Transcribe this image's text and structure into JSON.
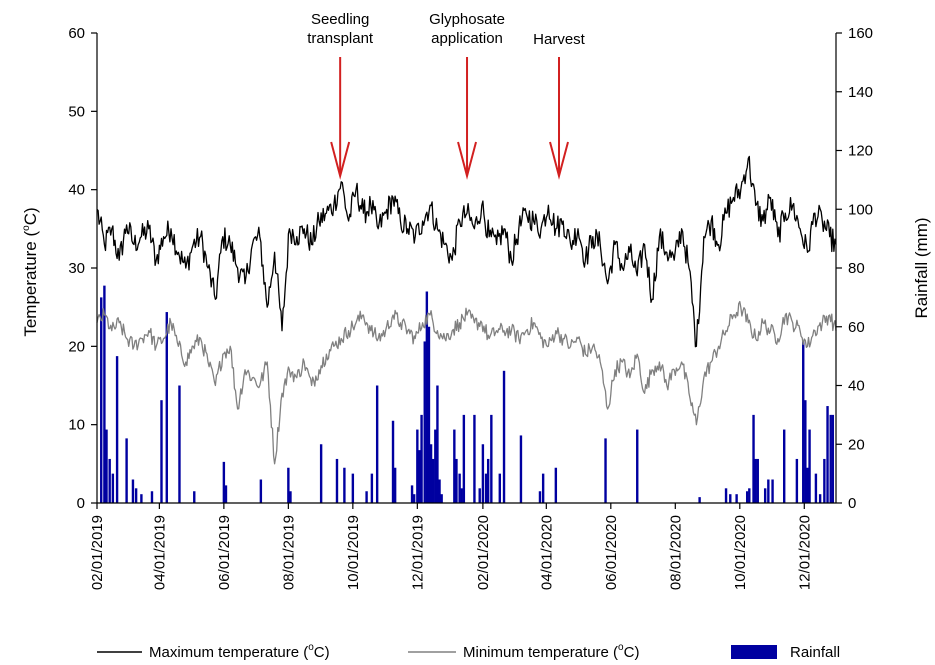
{
  "chart_data": {
    "type": "line",
    "title": "",
    "ylabel": "Temperature (°C)",
    "ylabel_parts": [
      "Temperature (",
      "o",
      "C)"
    ],
    "y2label": "Rainfall (mm)",
    "ylim": [
      0,
      60
    ],
    "y2lim": [
      0,
      160
    ],
    "yticks": [
      "0",
      "10",
      "20",
      "30",
      "40",
      "50",
      "60"
    ],
    "y2ticks": [
      "0",
      "20",
      "40",
      "60",
      "80",
      "100",
      "120",
      "140",
      "160"
    ],
    "xlim": [
      "2019-02-01",
      "2020-12-31"
    ],
    "xticks": [
      {
        "label": "02/01/2019",
        "date": "2019-02-01"
      },
      {
        "label": "04/01/2019",
        "date": "2019-04-01"
      },
      {
        "label": "06/01/2019",
        "date": "2019-06-01"
      },
      {
        "label": "08/01/2019",
        "date": "2019-08-01"
      },
      {
        "label": "10/01/2019",
        "date": "2019-10-01"
      },
      {
        "label": "12/01/2019",
        "date": "2019-12-01"
      },
      {
        "label": "02/01/2020",
        "date": "2020-02-01"
      },
      {
        "label": "04/01/2020",
        "date": "2020-04-01"
      },
      {
        "label": "06/01/2020",
        "date": "2020-06-01"
      },
      {
        "label": "08/01/2020",
        "date": "2020-08-01"
      },
      {
        "label": "10/01/2020",
        "date": "2020-10-01"
      },
      {
        "label": "12/01/2020",
        "date": "2020-12-01"
      }
    ],
    "annotations": [
      {
        "label_lines": [
          "Seedling",
          "transplant"
        ],
        "date": "2019-09-19"
      },
      {
        "label_lines": [
          "Glyphosate",
          "application"
        ],
        "date": "2020-01-17"
      },
      {
        "label_lines": [
          "Harvest"
        ],
        "date": "2020-04-13"
      }
    ],
    "legend_position": "bottom",
    "legend": [
      {
        "name": "Maximum temperature (°C)",
        "parts": [
          "Maximum temperature (",
          "o",
          "C)"
        ],
        "color": "#000000",
        "kind": "line"
      },
      {
        "name": "Minimum temperature (°C)",
        "parts": [
          "Minimum temperature (",
          "o",
          "C)"
        ],
        "color": "#808080",
        "kind": "line"
      },
      {
        "name": "Rainfall",
        "parts": [
          "Rainfall",
          "",
          ""
        ],
        "color": "#0000a0",
        "kind": "bar"
      }
    ],
    "series": [
      {
        "name": "Maximum temperature (°C)",
        "axis": "left",
        "color": "#000000",
        "x": [
          "2019-02-01",
          "2019-02-08",
          "2019-02-15",
          "2019-02-22",
          "2019-03-01",
          "2019-03-08",
          "2019-03-15",
          "2019-03-22",
          "2019-03-29",
          "2019-04-05",
          "2019-04-12",
          "2019-04-19",
          "2019-04-26",
          "2019-05-03",
          "2019-05-10",
          "2019-05-17",
          "2019-05-24",
          "2019-05-31",
          "2019-06-07",
          "2019-06-14",
          "2019-06-21",
          "2019-06-28",
          "2019-07-05",
          "2019-07-12",
          "2019-07-19",
          "2019-07-26",
          "2019-08-02",
          "2019-08-09",
          "2019-08-16",
          "2019-08-23",
          "2019-08-30",
          "2019-09-06",
          "2019-09-13",
          "2019-09-20",
          "2019-09-27",
          "2019-10-04",
          "2019-10-11",
          "2019-10-18",
          "2019-10-25",
          "2019-11-01",
          "2019-11-08",
          "2019-11-15",
          "2019-11-22",
          "2019-11-29",
          "2019-12-06",
          "2019-12-13",
          "2019-12-20",
          "2019-12-27",
          "2020-01-03",
          "2020-01-10",
          "2020-01-17",
          "2020-01-24",
          "2020-01-31",
          "2020-02-07",
          "2020-02-14",
          "2020-02-21",
          "2020-02-28",
          "2020-03-06",
          "2020-03-13",
          "2020-03-20",
          "2020-03-27",
          "2020-04-03",
          "2020-04-10",
          "2020-04-17",
          "2020-04-24",
          "2020-05-01",
          "2020-05-08",
          "2020-05-15",
          "2020-05-22",
          "2020-05-29",
          "2020-06-05",
          "2020-06-12",
          "2020-06-19",
          "2020-06-26",
          "2020-07-03",
          "2020-07-10",
          "2020-07-17",
          "2020-07-24",
          "2020-07-31",
          "2020-08-07",
          "2020-08-14",
          "2020-08-21",
          "2020-08-28",
          "2020-09-04",
          "2020-09-11",
          "2020-09-18",
          "2020-09-25",
          "2020-10-02",
          "2020-10-09",
          "2020-10-16",
          "2020-10-23",
          "2020-10-30",
          "2020-11-06",
          "2020-11-13",
          "2020-11-20",
          "2020-11-27",
          "2020-12-04",
          "2020-12-11",
          "2020-12-18",
          "2020-12-25",
          "2020-12-31"
        ],
        "values": [
          37.5,
          33,
          35,
          31,
          35.5,
          33,
          34,
          35,
          31,
          34,
          35,
          32,
          30,
          33,
          34,
          30,
          26,
          34,
          33,
          30,
          28,
          33,
          34,
          25,
          32,
          22,
          35,
          34,
          35,
          33,
          36,
          37,
          38,
          41,
          36,
          40,
          37,
          38,
          35,
          37,
          39,
          36,
          35,
          34,
          36,
          38,
          35,
          33,
          31,
          36,
          37,
          35,
          38,
          34,
          33,
          35,
          31,
          35,
          37,
          36,
          35,
          38,
          35,
          36,
          33,
          35,
          31,
          34,
          33,
          28,
          33,
          30,
          32,
          29,
          33,
          26,
          34,
          32,
          31,
          35,
          30,
          20,
          34,
          36,
          33,
          37,
          39,
          40,
          44,
          38,
          36,
          39,
          34,
          37,
          38,
          35,
          32,
          37,
          36,
          34,
          33
        ]
      },
      {
        "name": "Minimum temperature (°C)",
        "axis": "left",
        "color": "#808080",
        "x": [
          "2019-02-01",
          "2019-02-08",
          "2019-02-15",
          "2019-02-22",
          "2019-03-01",
          "2019-03-08",
          "2019-03-15",
          "2019-03-22",
          "2019-03-29",
          "2019-04-05",
          "2019-04-12",
          "2019-04-19",
          "2019-04-26",
          "2019-05-03",
          "2019-05-10",
          "2019-05-17",
          "2019-05-24",
          "2019-05-31",
          "2019-06-07",
          "2019-06-14",
          "2019-06-21",
          "2019-06-28",
          "2019-07-05",
          "2019-07-12",
          "2019-07-19",
          "2019-07-26",
          "2019-08-02",
          "2019-08-09",
          "2019-08-16",
          "2019-08-23",
          "2019-08-30",
          "2019-09-06",
          "2019-09-13",
          "2019-09-20",
          "2019-09-27",
          "2019-10-04",
          "2019-10-11",
          "2019-10-18",
          "2019-10-25",
          "2019-11-01",
          "2019-11-08",
          "2019-11-15",
          "2019-11-22",
          "2019-11-29",
          "2019-12-06",
          "2019-12-13",
          "2019-12-20",
          "2019-12-27",
          "2020-01-03",
          "2020-01-10",
          "2020-01-17",
          "2020-01-24",
          "2020-01-31",
          "2020-02-07",
          "2020-02-14",
          "2020-02-21",
          "2020-02-28",
          "2020-03-06",
          "2020-03-13",
          "2020-03-20",
          "2020-03-27",
          "2020-04-03",
          "2020-04-10",
          "2020-04-17",
          "2020-04-24",
          "2020-05-01",
          "2020-05-08",
          "2020-05-15",
          "2020-05-22",
          "2020-05-29",
          "2020-06-05",
          "2020-06-12",
          "2020-06-19",
          "2020-06-26",
          "2020-07-03",
          "2020-07-10",
          "2020-07-17",
          "2020-07-24",
          "2020-07-31",
          "2020-08-07",
          "2020-08-14",
          "2020-08-21",
          "2020-08-28",
          "2020-09-04",
          "2020-09-11",
          "2020-09-18",
          "2020-09-25",
          "2020-10-02",
          "2020-10-09",
          "2020-10-16",
          "2020-10-23",
          "2020-10-30",
          "2020-11-06",
          "2020-11-13",
          "2020-11-20",
          "2020-11-27",
          "2020-12-04",
          "2020-12-11",
          "2020-12-18",
          "2020-12-25",
          "2020-12-31"
        ],
        "values": [
          23,
          24,
          22,
          23,
          21,
          20,
          21,
          22,
          20,
          21,
          23,
          20,
          18,
          20,
          21,
          18,
          15,
          19,
          20,
          12,
          17,
          16,
          15,
          18,
          5,
          14,
          17,
          16,
          18,
          15,
          17,
          19,
          20,
          21,
          22,
          23,
          24,
          22,
          21,
          22,
          24,
          23,
          22,
          21,
          23,
          24,
          22,
          21,
          22,
          23,
          24,
          23,
          23,
          21,
          22,
          22,
          22,
          21,
          22,
          23,
          21,
          20,
          22,
          21,
          20,
          21,
          19,
          20,
          18,
          12,
          17,
          18,
          16,
          19,
          14,
          17,
          18,
          15,
          17,
          18,
          14,
          10,
          16,
          18,
          20,
          22,
          24,
          25,
          23,
          21,
          23,
          22,
          21,
          24,
          23,
          22,
          20,
          22,
          23,
          24,
          22
        ]
      },
      {
        "name": "Rainfall",
        "axis": "right",
        "type": "bar",
        "color": "#0000a0",
        "x": [
          "2019-02-05",
          "2019-02-08",
          "2019-02-10",
          "2019-02-13",
          "2019-02-16",
          "2019-02-20",
          "2019-03-01",
          "2019-03-07",
          "2019-03-10",
          "2019-03-15",
          "2019-03-25",
          "2019-04-03",
          "2019-04-08",
          "2019-04-20",
          "2019-05-04",
          "2019-06-01",
          "2019-06-03",
          "2019-07-06",
          "2019-08-01",
          "2019-08-03",
          "2019-09-01",
          "2019-09-16",
          "2019-09-23",
          "2019-10-01",
          "2019-10-14",
          "2019-10-19",
          "2019-10-24",
          "2019-11-08",
          "2019-11-10",
          "2019-11-26",
          "2019-11-28",
          "2019-12-01",
          "2019-12-03",
          "2019-12-05",
          "2019-12-08",
          "2019-12-10",
          "2019-12-12",
          "2019-12-14",
          "2019-12-16",
          "2019-12-18",
          "2019-12-20",
          "2019-12-22",
          "2019-12-24",
          "2020-01-05",
          "2020-01-07",
          "2020-01-10",
          "2020-01-12",
          "2020-01-14",
          "2020-01-24",
          "2020-01-29",
          "2020-02-01",
          "2020-02-04",
          "2020-02-06",
          "2020-02-09",
          "2020-02-17",
          "2020-02-21",
          "2020-03-08",
          "2020-03-26",
          "2020-03-29",
          "2020-04-10",
          "2020-05-27",
          "2020-06-26",
          "2020-08-24",
          "2020-09-18",
          "2020-09-22",
          "2020-09-28",
          "2020-10-08",
          "2020-10-10",
          "2020-10-14",
          "2020-10-16",
          "2020-10-18",
          "2020-10-25",
          "2020-10-28",
          "2020-11-01",
          "2020-11-12",
          "2020-11-24",
          "2020-11-30",
          "2020-12-02",
          "2020-12-04",
          "2020-12-06",
          "2020-12-12",
          "2020-12-16",
          "2020-12-20",
          "2020-12-23",
          "2020-12-26",
          "2020-12-28"
        ],
        "values": [
          70,
          74,
          25,
          15,
          10,
          50,
          22,
          8,
          5,
          3,
          4,
          35,
          65,
          40,
          4,
          14,
          6,
          8,
          12,
          4,
          20,
          15,
          12,
          10,
          4,
          10,
          40,
          28,
          12,
          6,
          3,
          25,
          18,
          30,
          55,
          72,
          60,
          20,
          15,
          25,
          40,
          8,
          3,
          25,
          15,
          10,
          5,
          30,
          30,
          5,
          20,
          10,
          15,
          30,
          10,
          45,
          23,
          4,
          10,
          12,
          22,
          25,
          2,
          5,
          3,
          3,
          4,
          5,
          30,
          15,
          15,
          5,
          8,
          8,
          25,
          15,
          55,
          35,
          12,
          25,
          10,
          3,
          15,
          33,
          30,
          30
        ]
      }
    ]
  }
}
